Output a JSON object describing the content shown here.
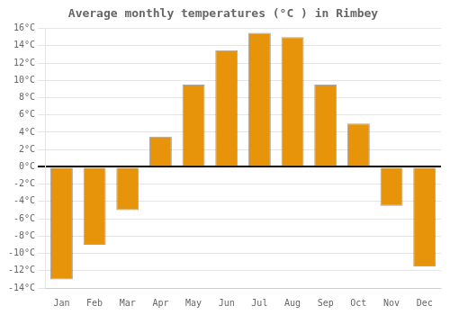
{
  "chart_data": {
    "type": "bar",
    "title": "Average monthly temperatures (°C ) in Rimbey",
    "categories": [
      "Jan",
      "Feb",
      "Mar",
      "Apr",
      "May",
      "Jun",
      "Jul",
      "Aug",
      "Sep",
      "Oct",
      "Nov",
      "Dec"
    ],
    "values": [
      -13,
      -9,
      -5,
      3.5,
      9.5,
      13.5,
      15.5,
      15,
      9.5,
      5,
      -4.5,
      -11.5
    ],
    "color": "#E8940A",
    "ylim": [
      -14,
      16
    ],
    "yticks": [
      {
        "value": -14,
        "label": "-14°C"
      },
      {
        "value": -12,
        "label": "-12°C"
      },
      {
        "value": -10,
        "label": "-10°C"
      },
      {
        "value": -8,
        "label": "-8°C"
      },
      {
        "value": -6,
        "label": "-6°C"
      },
      {
        "value": -4,
        "label": "-4°C"
      },
      {
        "value": -2,
        "label": "-2°C"
      },
      {
        "value": 0,
        "label": "0°C"
      },
      {
        "value": 2,
        "label": "2°C"
      },
      {
        "value": 4,
        "label": "4°C"
      },
      {
        "value": 6,
        "label": "6°C"
      },
      {
        "value": 8,
        "label": "8°C"
      },
      {
        "value": 10,
        "label": "10°C"
      },
      {
        "value": 12,
        "label": "12°C"
      },
      {
        "value": 14,
        "label": "14°C"
      },
      {
        "value": 16,
        "label": "16°C"
      }
    ],
    "grid": true
  }
}
